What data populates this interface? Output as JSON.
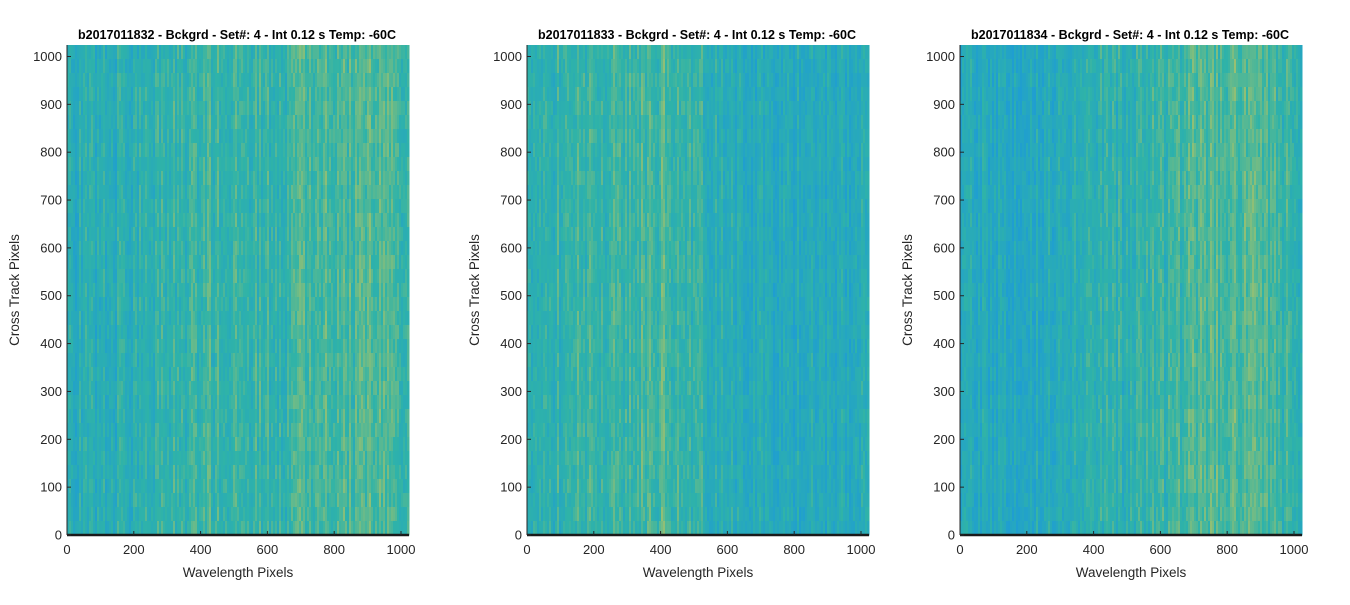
{
  "colors": {
    "low": "#1f9ed1",
    "mid": "#2fb3a8",
    "high": "#a6c26a",
    "axis": "#262626",
    "baseline": "#1a1a1a"
  },
  "chart_data": [
    {
      "type": "heatmap",
      "title": "b2017011832 - Bckgrd - Set#: 4 - Int 0.12 s Temp: -60C",
      "xlabel": "Wavelength Pixels",
      "ylabel": "Cross Track Pixels",
      "xlim": [
        0,
        1024
      ],
      "ylim": [
        0,
        1024
      ],
      "xticks": [
        0,
        200,
        400,
        600,
        800,
        1000
      ],
      "yticks": [
        0,
        100,
        200,
        300,
        400,
        500,
        600,
        700,
        800,
        900,
        1000
      ],
      "colormap": "parula",
      "pattern": "vertical streaks; bluer at low wavelength pixels, more yellow-green toward 400-1000",
      "column_profile": {
        "x": [
          0,
          100,
          200,
          300,
          400,
          500,
          600,
          700,
          800,
          900,
          1024
        ],
        "level": [
          0.3,
          0.33,
          0.38,
          0.45,
          0.52,
          0.5,
          0.47,
          0.55,
          0.62,
          0.6,
          0.58
        ]
      }
    },
    {
      "type": "heatmap",
      "title": "b2017011833 - Bckgrd - Set#: 4 - Int 0.12 s Temp: -60C",
      "xlabel": "Wavelength Pixels",
      "ylabel": "Cross Track Pixels",
      "xlim": [
        0,
        1024
      ],
      "ylim": [
        0,
        1024
      ],
      "xticks": [
        0,
        200,
        400,
        600,
        800,
        1000
      ],
      "yticks": [
        0,
        100,
        200,
        300,
        400,
        500,
        600,
        700,
        800,
        900,
        1000
      ],
      "colormap": "parula",
      "pattern": "vertical streaks; greener on the left half peaking near 400, bluer from 600 to 1024",
      "column_profile": {
        "x": [
          0,
          100,
          200,
          300,
          400,
          500,
          600,
          700,
          800,
          900,
          1024
        ],
        "level": [
          0.45,
          0.48,
          0.5,
          0.55,
          0.6,
          0.5,
          0.3,
          0.25,
          0.27,
          0.28,
          0.3
        ]
      }
    },
    {
      "type": "heatmap",
      "title": "b2017011834 - Bckgrd - Set#: 4 - Int 0.12 s Temp: -60C",
      "xlabel": "Wavelength Pixels",
      "ylabel": "Cross Track Pixels",
      "xlim": [
        0,
        1024
      ],
      "ylim": [
        0,
        1024
      ],
      "xticks": [
        0,
        200,
        400,
        600,
        800,
        1000
      ],
      "yticks": [
        0,
        100,
        200,
        300,
        400,
        500,
        600,
        700,
        800,
        900,
        1000
      ],
      "colormap": "parula",
      "pattern": "vertical streaks; bluest near 100-300, yellow-green band near 700-900",
      "column_profile": {
        "x": [
          0,
          100,
          200,
          300,
          400,
          500,
          600,
          700,
          800,
          900,
          1024
        ],
        "level": [
          0.3,
          0.22,
          0.25,
          0.35,
          0.4,
          0.42,
          0.48,
          0.6,
          0.66,
          0.58,
          0.45
        ]
      }
    }
  ]
}
